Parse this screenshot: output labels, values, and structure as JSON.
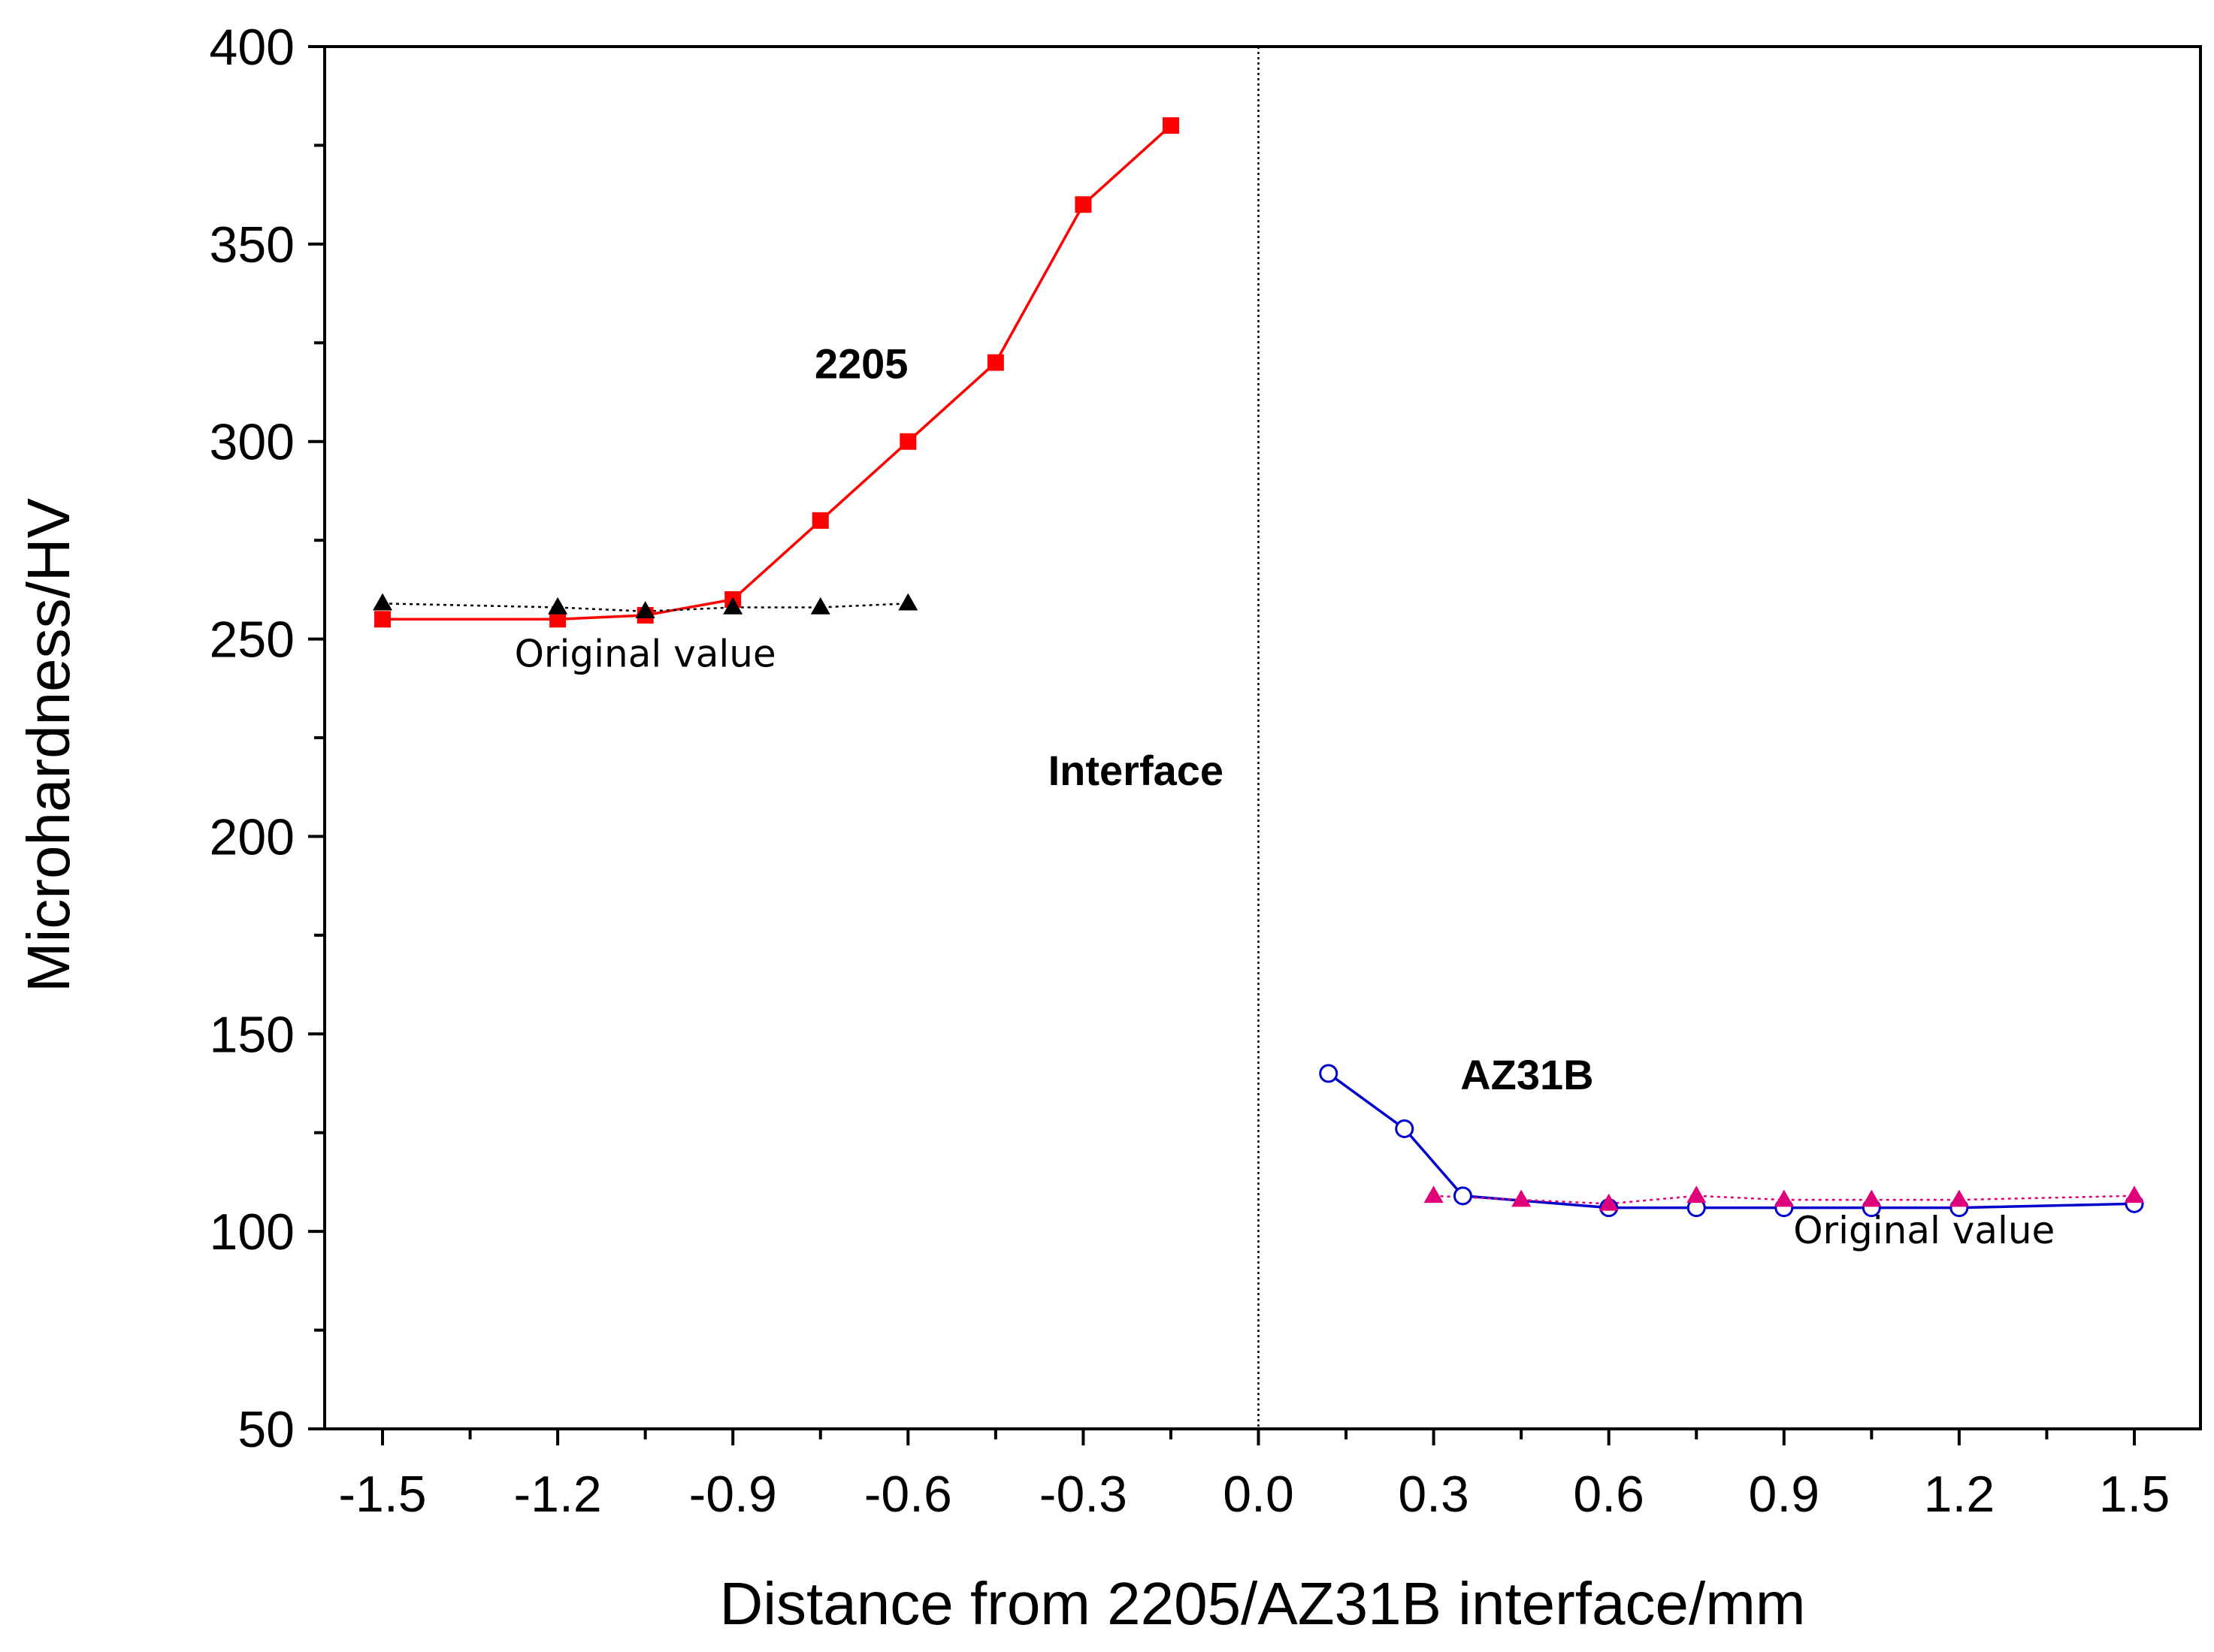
{
  "chart_data": {
    "type": "line",
    "title": "",
    "xlabel": "Distance from 2205/AZ31B interface/mm",
    "ylabel": "Microhardness/HV",
    "xlim": [
      -1.5,
      1.5
    ],
    "ylim": [
      50,
      400
    ],
    "xticks": [
      -1.5,
      -1.2,
      -0.9,
      -0.6,
      -0.3,
      0.0,
      0.3,
      0.6,
      0.9,
      1.2,
      1.5
    ],
    "xtick_labels": [
      "-1.5",
      "-1.2",
      "-0.9",
      "-0.6",
      "-0.3",
      "0.0",
      "0.3",
      "0.6",
      "0.9",
      "1.2",
      "1.5"
    ],
    "yticks": [
      50,
      100,
      150,
      200,
      250,
      300,
      350,
      400
    ],
    "ytick_labels": [
      "50",
      "100",
      "150",
      "200",
      "250",
      "300",
      "350",
      "400"
    ],
    "grid": false,
    "series": [
      {
        "name": "2205",
        "color": "#ff0000",
        "marker": "square",
        "line": "solid",
        "x": [
          -1.5,
          -1.2,
          -1.05,
          -0.9,
          -0.75,
          -0.6,
          -0.45,
          -0.3,
          -0.15
        ],
        "values": [
          255,
          255,
          256,
          260,
          280,
          300,
          320,
          360,
          380
        ]
      },
      {
        "name": "2205 original value",
        "color": "#000000",
        "marker": "triangle",
        "line": "dotted",
        "x": [
          -1.5,
          -1.2,
          -1.05,
          -0.9,
          -0.75,
          -0.6
        ],
        "values": [
          259,
          258,
          257,
          258,
          258,
          259
        ]
      },
      {
        "name": "AZ31B",
        "color": "#0000cc",
        "marker": "open-circle",
        "line": "solid",
        "x": [
          0.12,
          0.25,
          0.35,
          0.6,
          0.75,
          0.9,
          1.05,
          1.2,
          1.5
        ],
        "values": [
          140,
          126,
          109,
          106,
          106,
          106,
          106,
          106,
          107
        ]
      },
      {
        "name": "AZ31B original value",
        "color": "#e0007a",
        "marker": "triangle",
        "line": "dotted",
        "x": [
          0.3,
          0.45,
          0.6,
          0.75,
          0.9,
          1.05,
          1.2,
          1.5
        ],
        "values": [
          109,
          108,
          107,
          109,
          108,
          108,
          108,
          109
        ]
      }
    ],
    "interface_line": {
      "x": 0.0,
      "label": "Interface"
    },
    "annotations": [
      {
        "text": "2205",
        "x": -0.68,
        "y": 316,
        "bold": true
      },
      {
        "text": "Original value",
        "x": -1.05,
        "y": 243,
        "bold": false
      },
      {
        "text": "Interface",
        "x": -0.21,
        "y": 213,
        "bold": true
      },
      {
        "text": "AZ31B",
        "x": 0.46,
        "y": 136,
        "bold": true
      },
      {
        "text": "Original value",
        "x": 1.14,
        "y": 97,
        "bold": false
      }
    ]
  }
}
